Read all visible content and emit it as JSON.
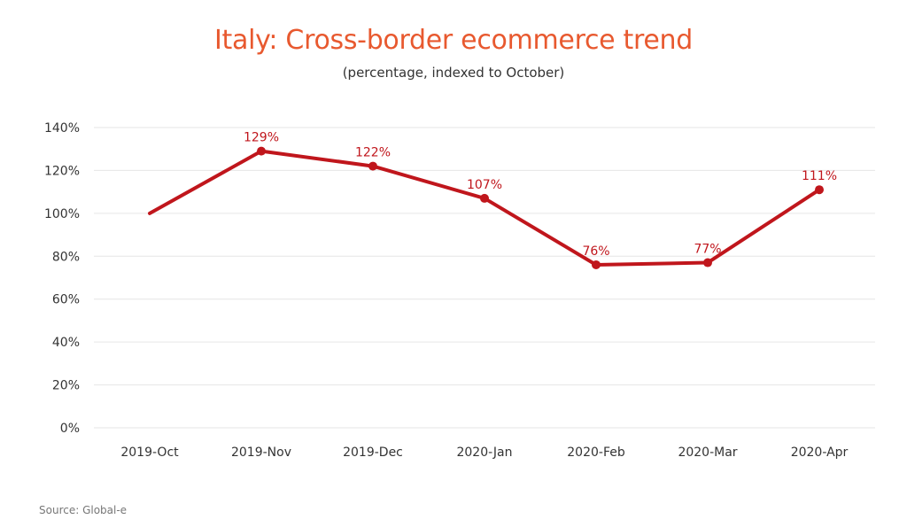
{
  "chart_data": {
    "type": "line",
    "title": "Italy: Cross-border ecommerce trend",
    "subtitle": "(percentage, indexed to October)",
    "xlabel": "",
    "ylabel": "",
    "categories": [
      "2019-Oct",
      "2019-Nov",
      "2019-Dec",
      "2020-Jan",
      "2020-Feb",
      "2020-Mar",
      "2020-Apr"
    ],
    "series": [
      {
        "values": [
          100,
          129,
          122,
          107,
          76,
          77,
          111
        ],
        "data_labels": [
          "",
          "129%",
          "122%",
          "107%",
          "76%",
          "77%",
          "111%"
        ],
        "color": "#C0161C"
      }
    ],
    "ylim": [
      0,
      140
    ],
    "y_ticks": [
      0,
      20,
      40,
      60,
      80,
      100,
      120,
      140
    ],
    "y_tick_labels": [
      "0%",
      "20%",
      "40%",
      "60%",
      "80%",
      "100%",
      "120%",
      "140%"
    ],
    "grid": true,
    "legend": "none",
    "source": "Source: Global-e"
  },
  "colors": {
    "title": "#E8592F",
    "line": "#C0161C",
    "grid": "#E6E6E6"
  }
}
